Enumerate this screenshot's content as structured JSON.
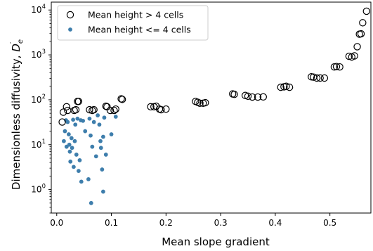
{
  "chart_data": {
    "type": "scatter",
    "xlabel": "Mean slope gradient",
    "ylabel": "Dimensionless diffusivity, ",
    "ylabel_symbol": "D",
    "ylabel_sub": "e",
    "ylabel_prime": "′",
    "xscale": "linear",
    "yscale": "log",
    "xlim": [
      -0.01,
      0.575
    ],
    "ylim": [
      0.3,
      15000
    ],
    "xticks": [
      0.0,
      0.1,
      0.2,
      0.3,
      0.4,
      0.5
    ],
    "xtick_labels": [
      "0.0",
      "0.1",
      "0.2",
      "0.3",
      "0.4",
      "0.5"
    ],
    "yticks": [
      1,
      10,
      100,
      1000,
      10000
    ],
    "ytick_bases": [
      "10",
      "10",
      "10",
      "10",
      "10"
    ],
    "ytick_exps": [
      "0",
      "1",
      "2",
      "3",
      "4"
    ],
    "grid": false,
    "legend_position": "top-left",
    "series": [
      {
        "name": "Mean height > 4 cells",
        "marker": "open-circle",
        "color": "#000000",
        "points": [
          [
            0.01,
            32
          ],
          [
            0.012,
            53
          ],
          [
            0.018,
            70
          ],
          [
            0.02,
            58
          ],
          [
            0.032,
            58
          ],
          [
            0.035,
            60
          ],
          [
            0.038,
            92
          ],
          [
            0.04,
            92
          ],
          [
            0.06,
            60
          ],
          [
            0.065,
            58
          ],
          [
            0.068,
            60
          ],
          [
            0.09,
            72
          ],
          [
            0.092,
            70
          ],
          [
            0.098,
            58
          ],
          [
            0.105,
            58
          ],
          [
            0.108,
            62
          ],
          [
            0.118,
            105
          ],
          [
            0.12,
            102
          ],
          [
            0.172,
            70
          ],
          [
            0.178,
            70
          ],
          [
            0.182,
            72
          ],
          [
            0.188,
            62
          ],
          [
            0.191,
            60
          ],
          [
            0.2,
            62
          ],
          [
            0.254,
            92
          ],
          [
            0.258,
            88
          ],
          [
            0.262,
            84
          ],
          [
            0.268,
            84
          ],
          [
            0.272,
            86
          ],
          [
            0.322,
            135
          ],
          [
            0.325,
            132
          ],
          [
            0.345,
            125
          ],
          [
            0.35,
            120
          ],
          [
            0.358,
            115
          ],
          [
            0.368,
            115
          ],
          [
            0.378,
            116
          ],
          [
            0.41,
            190
          ],
          [
            0.416,
            195
          ],
          [
            0.42,
            200
          ],
          [
            0.426,
            190
          ],
          [
            0.466,
            325
          ],
          [
            0.47,
            320
          ],
          [
            0.476,
            305
          ],
          [
            0.482,
            305
          ],
          [
            0.49,
            305
          ],
          [
            0.508,
            540
          ],
          [
            0.512,
            550
          ],
          [
            0.518,
            540
          ],
          [
            0.535,
            930
          ],
          [
            0.54,
            900
          ],
          [
            0.545,
            950
          ],
          [
            0.55,
            1520
          ],
          [
            0.554,
            2900
          ],
          [
            0.557,
            2950
          ],
          [
            0.56,
            5200
          ],
          [
            0.567,
            9400
          ]
        ]
      },
      {
        "name": "Mean height <= 4 cells",
        "marker": "filled-circle",
        "color": "#3e7eac",
        "points": [
          [
            0.013,
            12
          ],
          [
            0.015,
            20
          ],
          [
            0.017,
            35
          ],
          [
            0.018,
            9
          ],
          [
            0.02,
            32
          ],
          [
            0.022,
            17
          ],
          [
            0.023,
            10
          ],
          [
            0.024,
            7
          ],
          [
            0.025,
            4.2
          ],
          [
            0.027,
            14
          ],
          [
            0.028,
            8.5
          ],
          [
            0.03,
            36
          ],
          [
            0.031,
            3.2
          ],
          [
            0.033,
            12
          ],
          [
            0.034,
            28
          ],
          [
            0.036,
            6
          ],
          [
            0.038,
            38
          ],
          [
            0.04,
            2.6
          ],
          [
            0.042,
            4.5
          ],
          [
            0.044,
            35
          ],
          [
            0.045,
            1.5
          ],
          [
            0.048,
            34
          ],
          [
            0.052,
            20
          ],
          [
            0.058,
            1.7
          ],
          [
            0.06,
            38
          ],
          [
            0.062,
            16
          ],
          [
            0.063,
            0.5
          ],
          [
            0.065,
            9
          ],
          [
            0.068,
            32
          ],
          [
            0.072,
            5.5
          ],
          [
            0.075,
            45
          ],
          [
            0.078,
            28
          ],
          [
            0.08,
            12
          ],
          [
            0.081,
            8.5
          ],
          [
            0.083,
            2.8
          ],
          [
            0.085,
            0.9
          ],
          [
            0.085,
            15
          ],
          [
            0.087,
            40
          ],
          [
            0.09,
            6
          ],
          [
            0.1,
            17
          ],
          [
            0.108,
            42
          ]
        ]
      }
    ]
  }
}
